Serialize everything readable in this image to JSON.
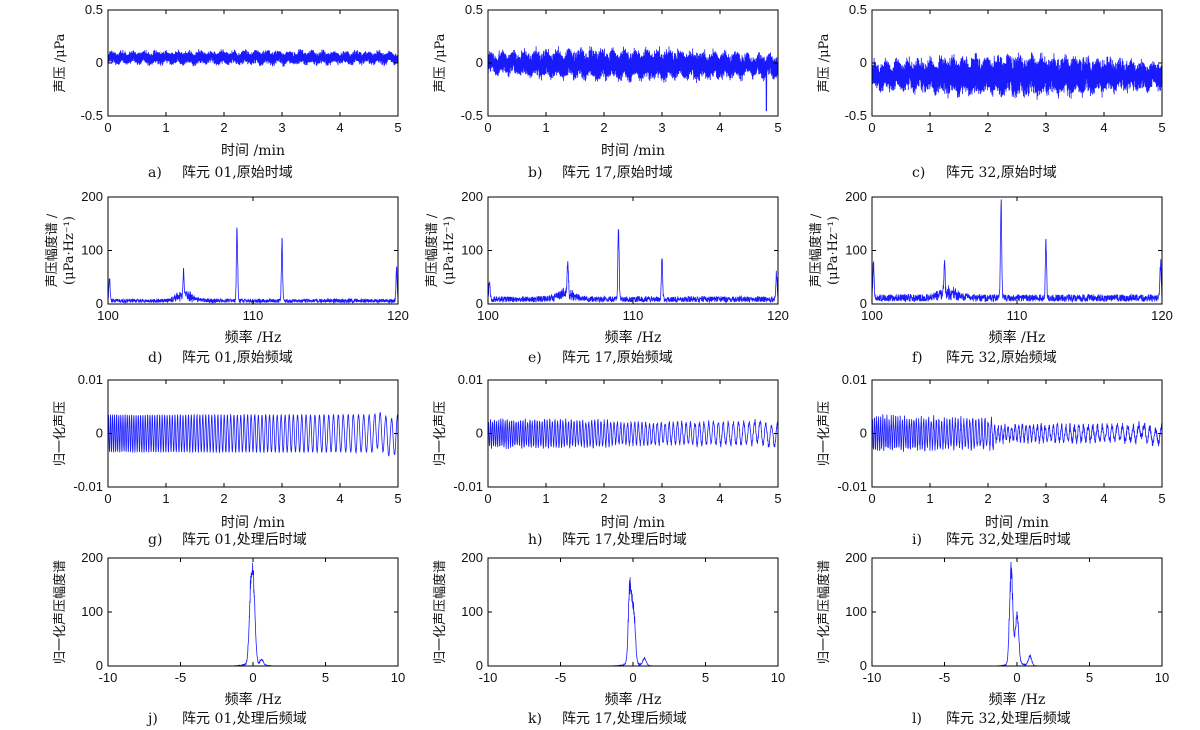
{
  "colors": {
    "signal": "#1a1aff",
    "axes": "#000000"
  },
  "chart_data": [
    {
      "id": "a",
      "type": "line",
      "domain": "time",
      "letter": "a)",
      "caption_text": "阵元 01,原始时域",
      "xlabel": "时间 /min",
      "ylabel": [
        "声压 /μPa"
      ],
      "xlim": [
        0,
        5
      ],
      "ylim": [
        -0.5,
        0.5
      ],
      "xticks": [
        "0",
        "1",
        "2",
        "3",
        "4",
        "5"
      ],
      "yticks": [
        "-0.5",
        "0",
        "0.5"
      ],
      "signal": {
        "kind": "raw_time",
        "mean": 0.05,
        "amplitude": 0.05,
        "drift": 0,
        "swell": 0.2,
        "spike_at": null
      }
    },
    {
      "id": "b",
      "type": "line",
      "domain": "time",
      "letter": "b)",
      "caption_text": "阵元 17,原始时域",
      "xlabel": "时间 /min",
      "ylabel": [
        "声压 /μPa"
      ],
      "xlim": [
        0,
        5
      ],
      "ylim": [
        -0.5,
        0.5
      ],
      "xticks": [
        "0",
        "1",
        "2",
        "3",
        "4",
        "5"
      ],
      "yticks": [
        "-0.5",
        "0",
        "0.5"
      ],
      "signal": {
        "kind": "raw_time",
        "mean": 0.0,
        "amplitude": 0.09,
        "drift": -0.03,
        "swell": 0.5,
        "spike_at": 4.8
      }
    },
    {
      "id": "c",
      "type": "line",
      "domain": "time",
      "letter": "c)",
      "caption_text": "阵元 32,原始时域",
      "xlabel": "",
      "ylabel": [
        "声压 /μPa"
      ],
      "xlim": [
        0,
        5
      ],
      "ylim": [
        -0.5,
        0.5
      ],
      "xticks": [
        "0",
        "1",
        "2",
        "3",
        "4",
        "5"
      ],
      "yticks": [
        "-0.5",
        "0",
        "0.5"
      ],
      "signal": {
        "kind": "raw_time",
        "mean": -0.12,
        "amplitude": 0.11,
        "drift": 0.0,
        "swell": 0.6,
        "spike_at": null
      }
    },
    {
      "id": "d",
      "type": "line",
      "domain": "freq",
      "letter": "d)",
      "caption_text": "阵元 01,原始频域",
      "xlabel": "频率 /Hz",
      "ylabel": [
        "声压幅度谱 /",
        "(μPa·Hz⁻¹)"
      ],
      "xlim": [
        100,
        120
      ],
      "ylim": [
        0,
        200
      ],
      "xticks": [
        "100",
        "110",
        "120"
      ],
      "yticks": [
        "0",
        "100",
        "200"
      ],
      "peaks": [
        {
          "x": 100.1,
          "y": 45
        },
        {
          "x": 105.2,
          "y": 45
        },
        {
          "x": 108.9,
          "y": 155
        },
        {
          "x": 112.0,
          "y": 130
        },
        {
          "x": 119.9,
          "y": 65
        }
      ],
      "noise_floor": 8
    },
    {
      "id": "e",
      "type": "line",
      "domain": "freq",
      "letter": "e)",
      "caption_text": "阵元 17,原始频域",
      "xlabel": "频率 /Hz",
      "ylabel": [
        "声压幅度谱 /",
        "(μPa·Hz⁻¹)"
      ],
      "xlim": [
        100,
        120
      ],
      "ylim": [
        0,
        200
      ],
      "xticks": [
        "100",
        "110",
        "120"
      ],
      "yticks": [
        "0",
        "100",
        "200"
      ],
      "peaks": [
        {
          "x": 100.1,
          "y": 40
        },
        {
          "x": 105.5,
          "y": 70
        },
        {
          "x": 109.0,
          "y": 155
        },
        {
          "x": 112.0,
          "y": 95
        },
        {
          "x": 119.9,
          "y": 55
        }
      ],
      "noise_floor": 12
    },
    {
      "id": "f",
      "type": "line",
      "domain": "freq",
      "letter": "f)",
      "caption_text": "阵元 32,原始频域",
      "xlabel": "频率 /Hz",
      "ylabel": [
        "声压幅度谱 /",
        "(μPa·Hz⁻¹)"
      ],
      "xlim": [
        100,
        120
      ],
      "ylim": [
        0,
        200
      ],
      "xticks": [
        "100",
        "110",
        "120"
      ],
      "yticks": [
        "0",
        "100",
        "200"
      ],
      "peaks": [
        {
          "x": 100.1,
          "y": 75
        },
        {
          "x": 105.0,
          "y": 60
        },
        {
          "x": 108.9,
          "y": 195
        },
        {
          "x": 112.0,
          "y": 130
        },
        {
          "x": 119.9,
          "y": 75
        }
      ],
      "noise_floor": 15
    },
    {
      "id": "g",
      "type": "line",
      "domain": "time",
      "letter": "g)",
      "caption_text": "阵元 01,处理后时域",
      "xlabel": "时间 /min",
      "ylabel": [
        "归一化声压"
      ],
      "xlim": [
        0,
        5
      ],
      "ylim": [
        -0.01,
        0.01
      ],
      "xticks": [
        "0",
        "1",
        "2",
        "3",
        "4",
        "5"
      ],
      "yticks": [
        "-0.01",
        "0",
        "0.01"
      ],
      "signal": {
        "kind": "processed_time",
        "amplitude": 0.0035,
        "decay": 0.0,
        "chaos": 0.05
      }
    },
    {
      "id": "h",
      "type": "line",
      "domain": "time",
      "letter": "h)",
      "caption_text": "阵元 17,处理后时域",
      "xlabel": "时间 /min",
      "ylabel": [
        "归一化声压"
      ],
      "xlim": [
        0,
        5
      ],
      "ylim": [
        -0.01,
        0.01
      ],
      "xticks": [
        "0",
        "1",
        "2",
        "3",
        "4",
        "5"
      ],
      "yticks": [
        "-0.01",
        "0",
        "0.01"
      ],
      "signal": {
        "kind": "processed_time",
        "amplitude": 0.0025,
        "decay": 0.2,
        "chaos": 0.35
      }
    },
    {
      "id": "i",
      "type": "line",
      "domain": "time",
      "letter": "i)",
      "caption_text": "阵元 32,处理后时域",
      "xlabel": "时间 /min",
      "ylabel": [
        "归一化声压"
      ],
      "xlim": [
        0,
        5
      ],
      "ylim": [
        -0.01,
        0.01
      ],
      "xticks": [
        "0",
        "1",
        "2",
        "3",
        "4",
        "5"
      ],
      "yticks": [
        "-0.01",
        "0",
        "0.01"
      ],
      "signal": {
        "kind": "processed_time",
        "amplitude": 0.003,
        "decay": 0.55,
        "chaos": 0.45
      }
    },
    {
      "id": "j",
      "type": "line",
      "domain": "freq",
      "letter": "j)",
      "caption_text": "阵元 01,处理后频域",
      "xlabel": "频率 /Hz",
      "ylabel": [
        "归一化声压幅度谱"
      ],
      "xlim": [
        -10,
        10
      ],
      "ylim": [
        0,
        200
      ],
      "xticks": [
        "-10",
        "-5",
        "0",
        "5",
        "10"
      ],
      "yticks": [
        "0",
        "100",
        "200"
      ],
      "peaks": [
        {
          "x": -0.15,
          "y": 150
        },
        {
          "x": 0.05,
          "y": 140
        },
        {
          "x": 0.6,
          "y": 12
        }
      ],
      "noise_floor": 0
    },
    {
      "id": "k",
      "type": "line",
      "domain": "freq",
      "letter": "k)",
      "caption_text": "阵元 17,处理后频域",
      "xlabel": "频率 /Hz",
      "ylabel": [
        "归一化声压幅度谱"
      ],
      "xlim": [
        -10,
        10
      ],
      "ylim": [
        0,
        200
      ],
      "xticks": [
        "-10",
        "-5",
        "0",
        "5",
        "10"
      ],
      "yticks": [
        "0",
        "100",
        "200"
      ],
      "peaks": [
        {
          "x": -0.2,
          "y": 165
        },
        {
          "x": 0.05,
          "y": 100
        },
        {
          "x": 0.8,
          "y": 15
        }
      ],
      "noise_floor": 0
    },
    {
      "id": "l",
      "type": "line",
      "domain": "freq",
      "letter": "l)",
      "caption_text": "阵元 32,处理后频域",
      "xlabel": "频率 /Hz",
      "ylabel": [
        "归一化声压幅度谱"
      ],
      "xlim": [
        -10,
        10
      ],
      "ylim": [
        0,
        200
      ],
      "xticks": [
        "-10",
        "-5",
        "0",
        "5",
        "10"
      ],
      "yticks": [
        "0",
        "100",
        "200"
      ],
      "peaks": [
        {
          "x": -0.4,
          "y": 200
        },
        {
          "x": 0.0,
          "y": 100
        },
        {
          "x": 0.9,
          "y": 20
        }
      ],
      "noise_floor": 0
    }
  ]
}
